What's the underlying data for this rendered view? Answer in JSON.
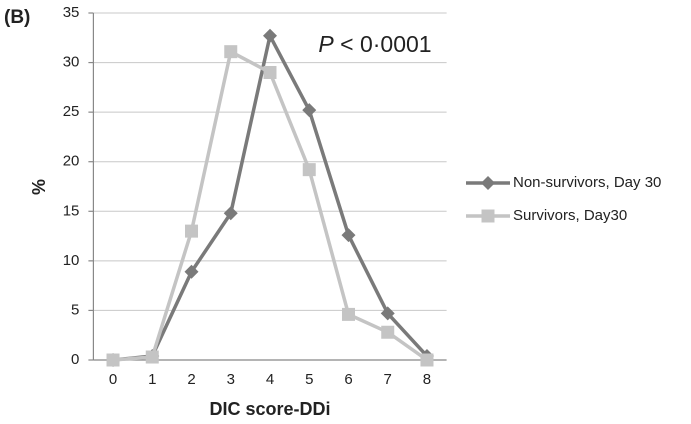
{
  "chart_data": {
    "type": "line",
    "panel_label": "(B)",
    "annotation": {
      "italic": "P",
      "text": "< 0·0001"
    },
    "xlabel": "DIC score-DDi",
    "ylabel": "%",
    "x": [
      0,
      1,
      2,
      3,
      4,
      5,
      6,
      7,
      8
    ],
    "xlim": [
      -0.5,
      8.5
    ],
    "xticks": [
      0,
      1,
      2,
      3,
      4,
      5,
      6,
      7,
      8
    ],
    "ylim": [
      0,
      35
    ],
    "yticks": [
      0,
      5,
      10,
      15,
      20,
      25,
      30,
      35
    ],
    "grid": true,
    "legend": "right",
    "series": [
      {
        "name": "Non-survivors,  Day 30",
        "color": "#7a7a7a",
        "marker": "diamond",
        "values": [
          0,
          0.4,
          8.9,
          14.8,
          32.7,
          25.2,
          12.6,
          4.7,
          0.4
        ]
      },
      {
        "name": "Survivors, Day30",
        "color": "#c4c4c4",
        "marker": "square",
        "values": [
          0,
          0.3,
          13,
          31.1,
          29,
          19.2,
          4.6,
          2.8,
          0
        ]
      }
    ]
  }
}
